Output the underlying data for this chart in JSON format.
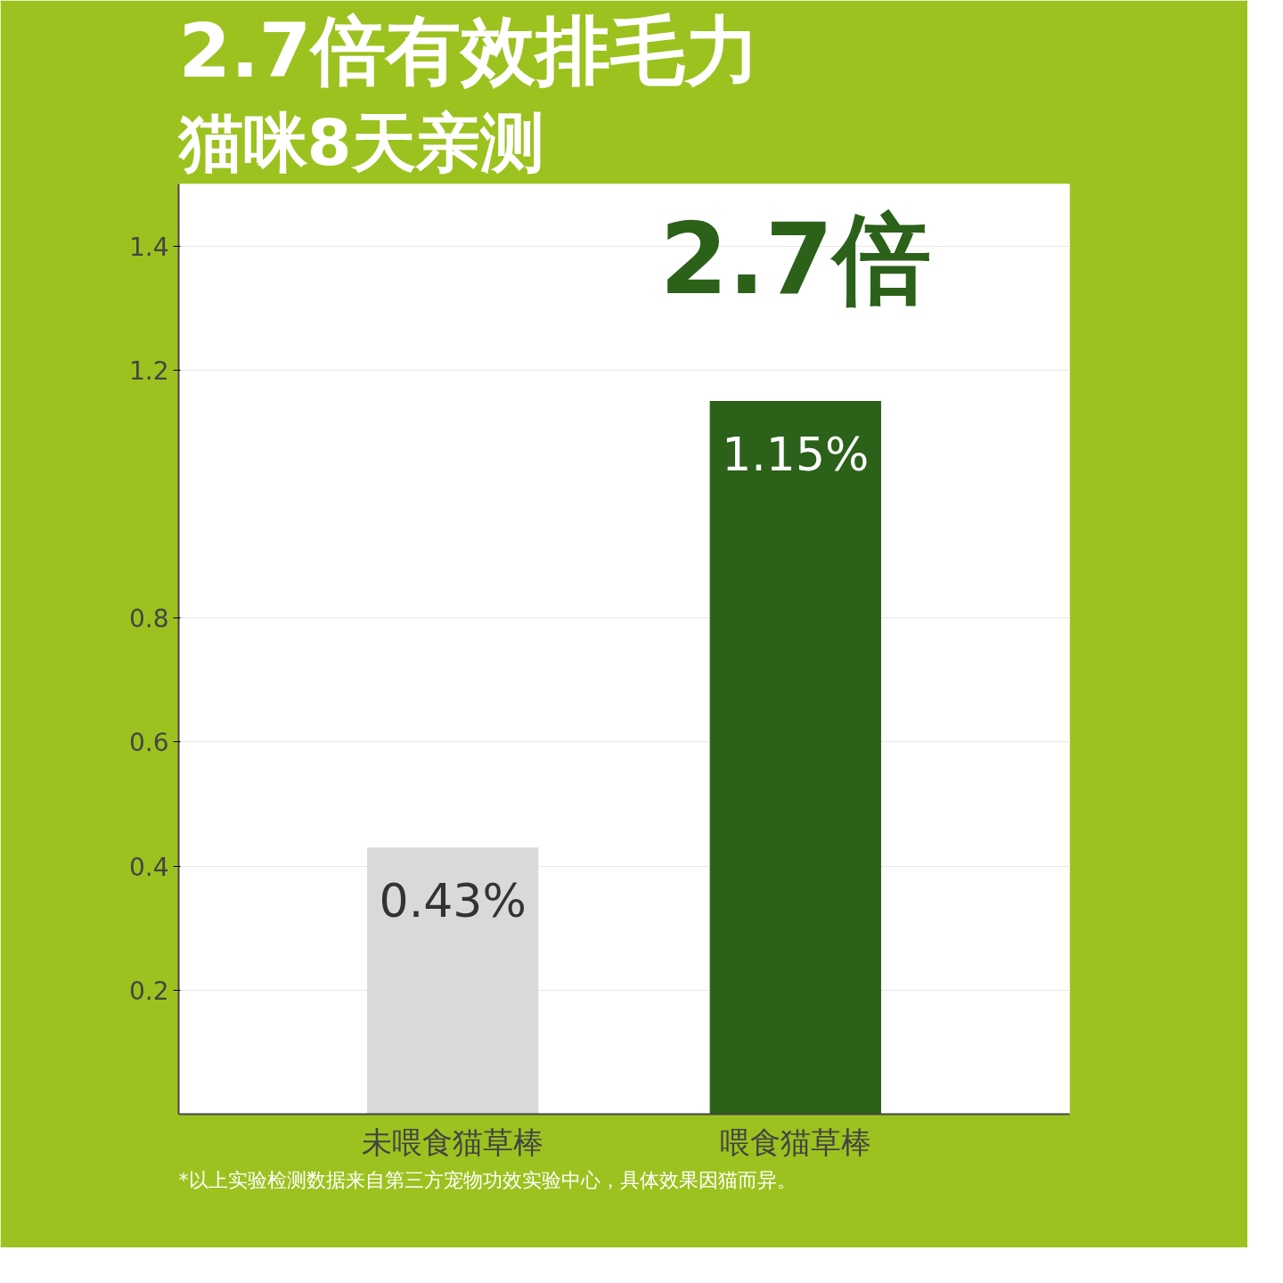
{
  "chart_data": {
    "type": "bar",
    "title": "2.7倍有效排毛力",
    "subtitle": "猫咪8天亲测",
    "categories": [
      "未喂食猫草棒",
      "喂食猫草棒"
    ],
    "values": [
      0.43,
      1.15
    ],
    "colors": [
      "#d9d9d9",
      "#2b6118"
    ],
    "value_labels": [
      "0.43%",
      "1.15%"
    ],
    "ylim": [
      0,
      1.5
    ],
    "yticks": [
      0.2,
      0.4,
      0.6,
      0.8,
      1.2,
      1.4
    ],
    "grid": true,
    "annotations": [
      "2.7倍",
      "*以上实验检测数据来自第三方宠物功效实验中心，具体效果因猫而异。"
    ]
  }
}
